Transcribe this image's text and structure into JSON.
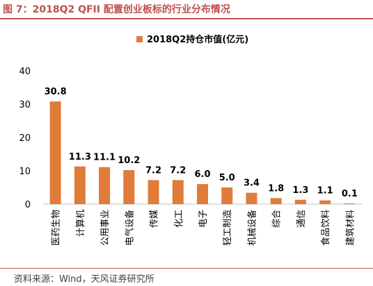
{
  "figure": {
    "title": "图 7：2018Q2 QFII 配置创业板标的行业分布情况",
    "source": "资料来源：Wind，天风证券研究所"
  },
  "colors": {
    "bar": "#E07B39",
    "title": "#c0504d",
    "axis": "#bfbfbf",
    "text": "#000000"
  },
  "chart_data": {
    "type": "bar",
    "title": "",
    "xlabel": "",
    "ylabel": "",
    "ylim": [
      0,
      40
    ],
    "yticks": [
      0,
      10,
      20,
      30,
      40
    ],
    "grid": false,
    "legend_position": "top-center",
    "categories": [
      "医药生物",
      "计算机",
      "公用事业",
      "电气设备",
      "传媒",
      "化工",
      "电子",
      "轻工制造",
      "机械设备",
      "综合",
      "通信",
      "食品饮料",
      "建筑材料"
    ],
    "series": [
      {
        "name": "2018Q2持仓市值(亿元)",
        "values": [
          30.8,
          11.3,
          11.1,
          10.2,
          7.2,
          7.2,
          6.0,
          5.0,
          3.4,
          1.8,
          1.3,
          1.1,
          0.1
        ],
        "labels": [
          "30.8",
          "11.3",
          "11.1",
          "10.2",
          "7.2",
          "7.2",
          "6.0",
          "5.0",
          "3.4",
          "1.8",
          "1.3",
          "1.1",
          "0.1"
        ]
      }
    ]
  }
}
